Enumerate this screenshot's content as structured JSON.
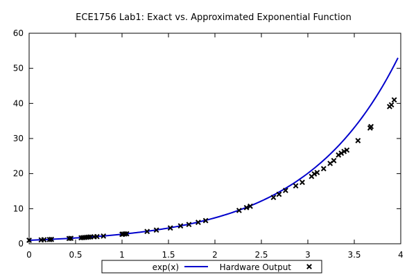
{
  "chart_data": {
    "type": "line",
    "title": "ECE1756 Lab1: Exact vs. Approximated Exponential Function",
    "xlabel": "",
    "ylabel": "",
    "xlim": [
      0,
      4
    ],
    "ylim": [
      0,
      60
    ],
    "x_ticks": [
      "0",
      "0.5",
      "1",
      "1.5",
      "2",
      "2.5",
      "3",
      "3.5",
      "4"
    ],
    "y_ticks": [
      "0",
      "10",
      "20",
      "30",
      "40",
      "50",
      "60"
    ],
    "grid": false,
    "legend_position": "bottom-center",
    "series": [
      {
        "name": "exp(x)",
        "style": "line",
        "color": "#0000cc",
        "function": "exp(x)",
        "x_range": [
          0,
          3.97
        ]
      },
      {
        "name": "Hardware Output",
        "style": "marker-x",
        "color": "#000000",
        "x": [
          0.0,
          0.13,
          0.16,
          0.22,
          0.24,
          0.43,
          0.45,
          0.56,
          0.58,
          0.6,
          0.62,
          0.64,
          0.66,
          0.7,
          0.73,
          0.8,
          1.0,
          1.01,
          1.03,
          1.05,
          1.27,
          1.37,
          1.52,
          1.63,
          1.72,
          1.82,
          1.9,
          2.26,
          2.34,
          2.38,
          2.63,
          2.69,
          2.76,
          2.87,
          2.94,
          3.04,
          3.07,
          3.1,
          3.17,
          3.24,
          3.28,
          3.33,
          3.36,
          3.39,
          3.42,
          3.54,
          3.67,
          3.68,
          3.88,
          3.9,
          3.93
        ],
        "y": [
          1.0,
          1.1,
          1.15,
          1.2,
          1.25,
          1.5,
          1.55,
          1.7,
          1.75,
          1.8,
          1.85,
          1.9,
          1.95,
          2.0,
          2.05,
          2.2,
          2.7,
          2.75,
          2.8,
          2.85,
          3.5,
          3.9,
          4.5,
          5.1,
          5.5,
          6.1,
          6.6,
          9.5,
          10.3,
          10.7,
          13.2,
          14.1,
          15.2,
          16.5,
          17.5,
          19.2,
          19.9,
          20.3,
          21.4,
          22.9,
          23.7,
          25.3,
          25.8,
          26.3,
          26.7,
          29.4,
          33.0,
          33.4,
          39.1,
          39.6,
          41.0
        ]
      }
    ]
  }
}
